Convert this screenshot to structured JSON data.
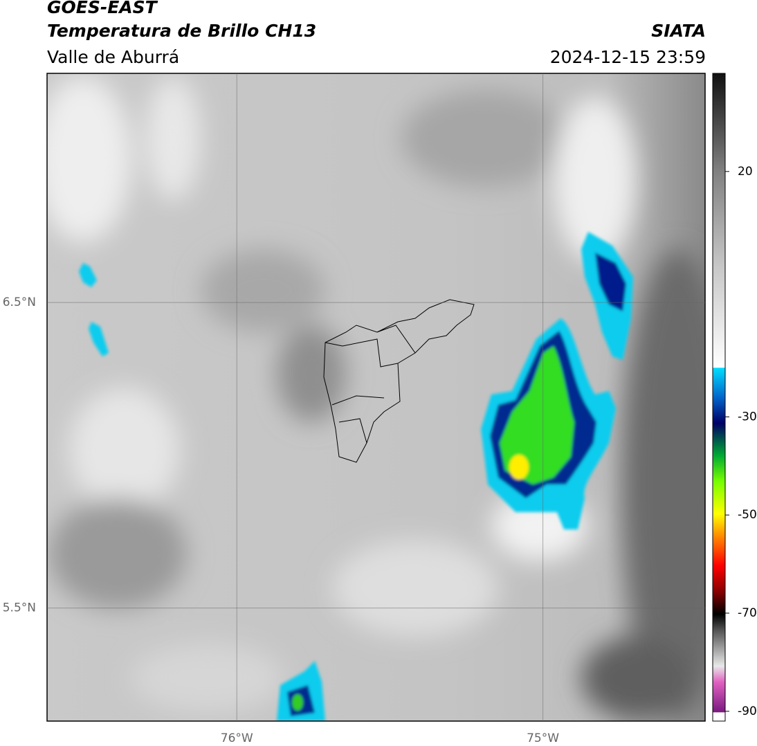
{
  "header": {
    "title": "GOES-EAST",
    "product": "Temperatura de Brillo CH13",
    "region": "Valle de Aburrá",
    "source": "SIATA",
    "datetime": "2024-12-15 23:59"
  },
  "map": {
    "lon_lim": [
      -76.62,
      -74.47
    ],
    "lat_lim": [
      5.13,
      7.25
    ],
    "lon_ticks": [
      {
        "value": -76,
        "label": "76°W"
      },
      {
        "value": -75,
        "label": "75°W"
      }
    ],
    "lat_ticks": [
      {
        "value": 6.5,
        "label": "6.5°N"
      },
      {
        "value": 5.5,
        "label": "5.5°N"
      }
    ]
  },
  "colorbar": {
    "lim": [
      -92,
      40
    ],
    "ticks": [
      20,
      -30,
      -50,
      -70,
      -90
    ]
  }
}
